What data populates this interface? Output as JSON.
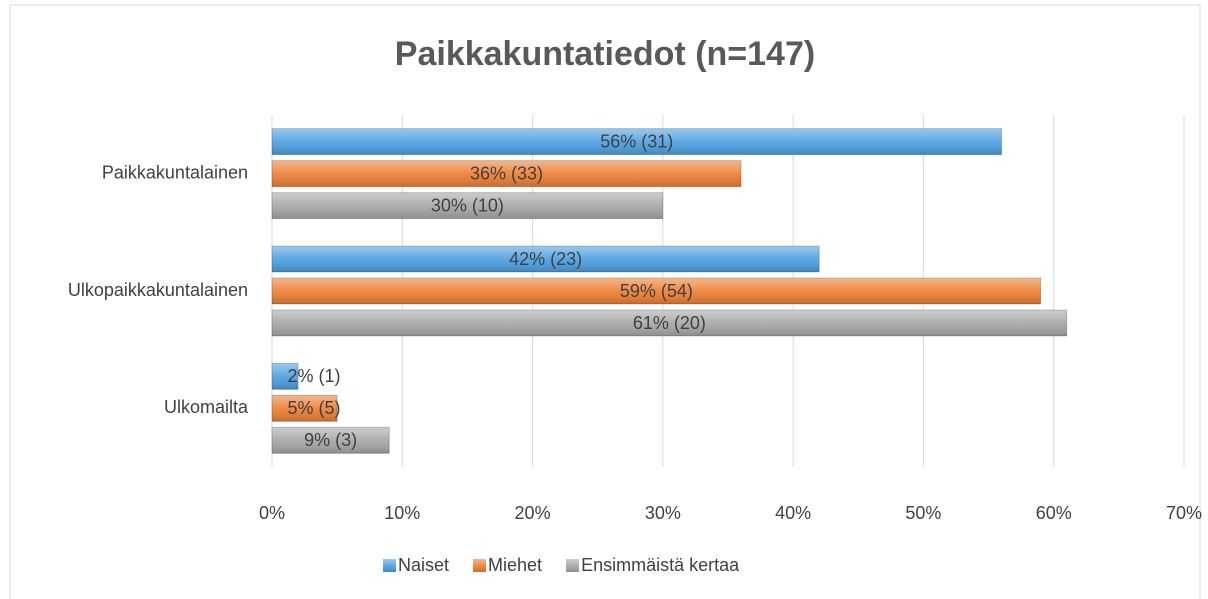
{
  "chart_data": {
    "type": "barh",
    "title": "Paikkakuntatiedot (n=147)",
    "categories": [
      "Paikkakuntalainen",
      "Ulkopaikkakuntalainen",
      "Ulkomailta"
    ],
    "series": [
      {
        "name": "Naiset",
        "color": "#4a9ee0",
        "values": [
          56,
          42,
          2
        ],
        "value_labels": [
          "56% (31)",
          "42% (23)",
          "2% (1)"
        ]
      },
      {
        "name": "Miehet",
        "color": "#ed7d31",
        "values": [
          36,
          59,
          5
        ],
        "value_labels": [
          "36% (33)",
          "59% (54)",
          "5% (5)"
        ]
      },
      {
        "name": "Ensimmäistä kertaa",
        "color": "#a5a5a5",
        "values": [
          30,
          61,
          9
        ],
        "value_labels": [
          "30% (10)",
          "61% (20)",
          "9% (3)"
        ]
      }
    ],
    "xlim": [
      0,
      70
    ],
    "xticks": [
      {
        "value": 0,
        "label": "0%"
      },
      {
        "value": 10,
        "label": "10%"
      },
      {
        "value": 20,
        "label": "20%"
      },
      {
        "value": 30,
        "label": "30%"
      },
      {
        "value": 40,
        "label": "40%"
      },
      {
        "value": 50,
        "label": "50%"
      },
      {
        "value": 60,
        "label": "60%"
      },
      {
        "value": 70,
        "label": "70%"
      }
    ],
    "grid": true,
    "legend": "bottom"
  }
}
